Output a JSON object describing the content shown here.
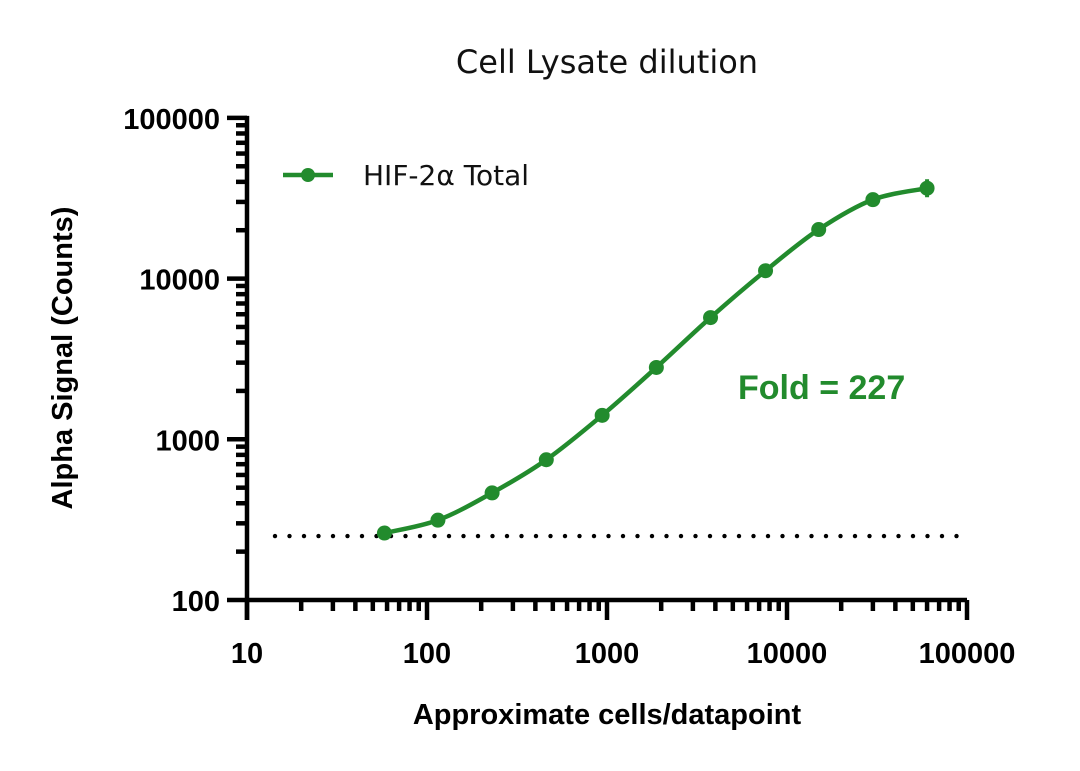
{
  "chart_data": {
    "type": "line",
    "title": "Cell Lysate dilution",
    "xlabel": "Approximate cells/datapoint",
    "ylabel": "Alpha Signal (Counts)",
    "xscale": "log",
    "yscale": "log",
    "xlim": [
      10,
      100000
    ],
    "ylim": [
      100,
      100000
    ],
    "x_ticks": [
      "10",
      "100",
      "1000",
      "10000",
      "100000"
    ],
    "y_ticks": [
      "100",
      "1000",
      "10000",
      "100000"
    ],
    "grid": false,
    "legend_position": "upper-left",
    "series": [
      {
        "name": "HIF-2α Total",
        "color": "#228B2D",
        "marker": "circle",
        "fit": "sigmoidal curve",
        "x": [
          58,
          115,
          230,
          460,
          940,
          1880,
          3760,
          7600,
          15000,
          30000,
          60000
        ],
        "values": [
          261,
          314,
          464,
          746,
          1410,
          2800,
          5720,
          11200,
          20200,
          31000,
          36500
        ]
      }
    ],
    "reference_lines": [
      {
        "type": "horizontal",
        "style": "dotted",
        "y": 250,
        "color": "#000000",
        "x_range": [
          15,
          75000
        ]
      }
    ],
    "annotations": [
      {
        "text": "Fold = 227",
        "color": "#228B2D",
        "x": 8000,
        "y": 2000
      }
    ]
  },
  "labels": {
    "title": "Cell Lysate dilution",
    "xlabel": "Approximate cells/datapoint",
    "ylabel": "Alpha Signal (Counts)",
    "legend": "HIF-2α Total",
    "annotation": "Fold = 227"
  }
}
